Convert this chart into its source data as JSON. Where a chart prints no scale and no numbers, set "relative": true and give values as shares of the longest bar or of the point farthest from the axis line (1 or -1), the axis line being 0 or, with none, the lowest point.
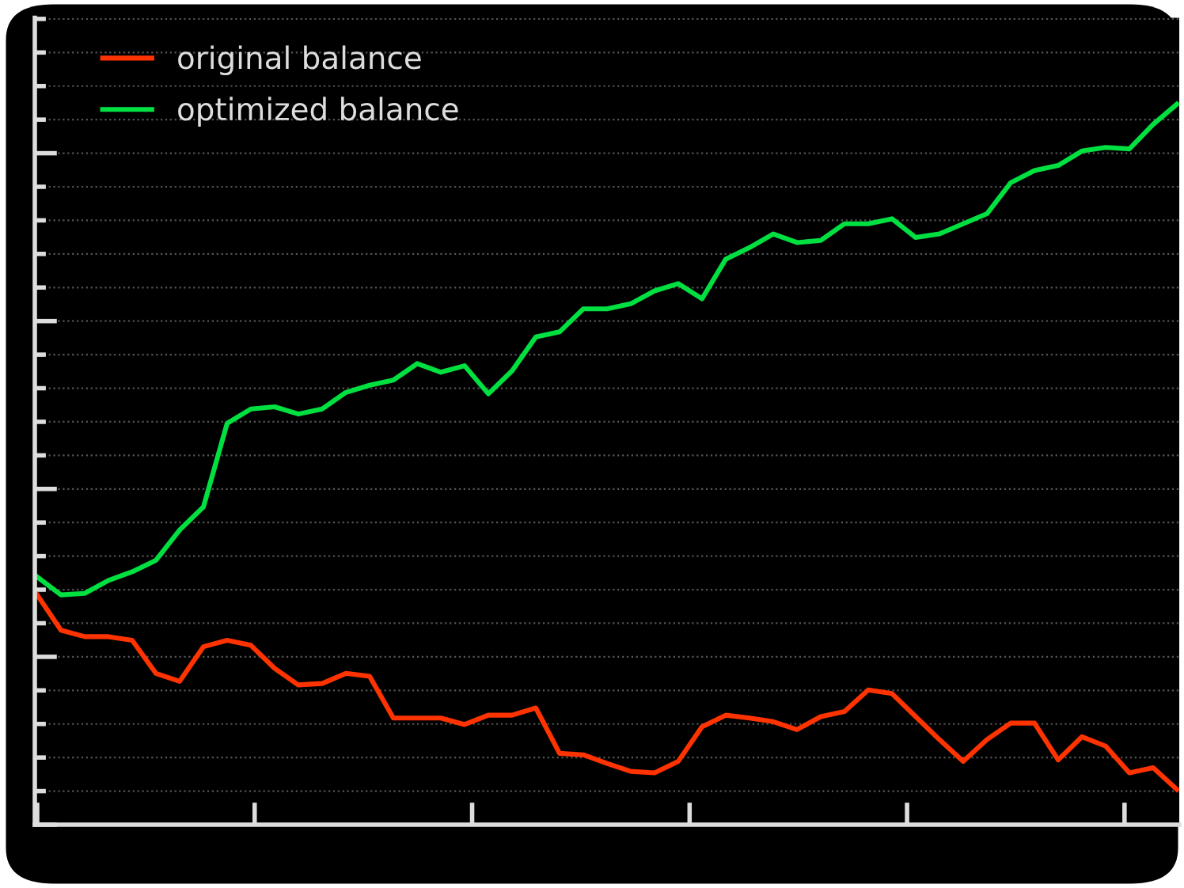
{
  "chart_data": {
    "type": "line",
    "relative": true,
    "tick_labels": false,
    "grid": "y",
    "legend": "top left",
    "line_style": "solid",
    "marker": "none",
    "categories": [
      null,
      null,
      null,
      null,
      null,
      null,
      null,
      null,
      null,
      null,
      null,
      null,
      null,
      null,
      null,
      null,
      null,
      null,
      null,
      null,
      null,
      null,
      null,
      null,
      null,
      null,
      null,
      null,
      null,
      null,
      null,
      null,
      null,
      null,
      null,
      null,
      null,
      null,
      null,
      null,
      null,
      null,
      null,
      null,
      null,
      null,
      null,
      null,
      null
    ],
    "series": [
      {
        "name": "original balance",
        "color": "#ff3300",
        "values": [
          0.319,
          0.27,
          0.261,
          0.261,
          0.256,
          0.21,
          0.199,
          0.247,
          0.256,
          0.249,
          0.217,
          0.194,
          0.196,
          0.21,
          0.206,
          0.148,
          0.148,
          0.148,
          0.139,
          0.152,
          0.152,
          0.162,
          0.099,
          0.097,
          0.085,
          0.074,
          0.072,
          0.088,
          0.136,
          0.152,
          0.148,
          0.143,
          0.132,
          0.15,
          0.157,
          0.187,
          0.182,
          0.15,
          0.118,
          0.088,
          0.118,
          0.141,
          0.141,
          0.09,
          0.122,
          0.109,
          0.072,
          0.079,
          0.049
        ]
      },
      {
        "name": "optimized balance",
        "color": "#00e040",
        "values": [
          0.344,
          0.319,
          0.321,
          0.339,
          0.351,
          0.367,
          0.409,
          0.441,
          0.557,
          0.577,
          0.58,
          0.57,
          0.577,
          0.6,
          0.61,
          0.617,
          0.64,
          0.628,
          0.637,
          0.598,
          0.63,
          0.677,
          0.684,
          0.716,
          0.716,
          0.723,
          0.741,
          0.751,
          0.73,
          0.785,
          0.801,
          0.82,
          0.808,
          0.811,
          0.834,
          0.834,
          0.841,
          0.815,
          0.82,
          0.834,
          0.848,
          0.891,
          0.908,
          0.915,
          0.935,
          0.94,
          0.938,
          0.972,
          1.0
        ]
      }
    ]
  }
}
